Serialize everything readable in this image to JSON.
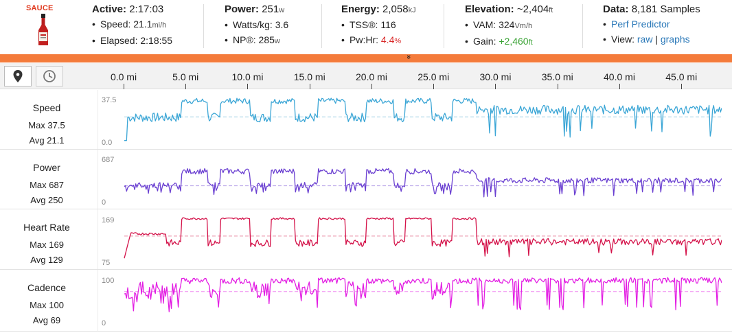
{
  "logo": {
    "text": "SAUCE",
    "icon": "hot-sauce-bottle-icon"
  },
  "stats": {
    "active": {
      "title": "Active:",
      "value": "2:17:03",
      "rows": [
        {
          "label": "Speed:",
          "value": "21.1",
          "unit": "mi/h"
        },
        {
          "label": "Elapsed:",
          "value": "2:18:55",
          "unit": ""
        }
      ]
    },
    "power": {
      "title": "Power:",
      "value": "251",
      "unit": "w",
      "rows": [
        {
          "label": "Watts/kg:",
          "value": "3.6",
          "unit": ""
        },
        {
          "label": "NP®:",
          "value": "285",
          "unit": "w"
        }
      ]
    },
    "energy": {
      "title": "Energy:",
      "value": "2,058",
      "unit": "kJ",
      "rows": [
        {
          "label": "TSS®:",
          "value": "116",
          "unit": ""
        },
        {
          "label": "Pw:Hr:",
          "value": "4.4",
          "unit": "%"
        }
      ]
    },
    "elevation": {
      "title": "Elevation:",
      "value": "~2,404",
      "unit": "ft",
      "rows": [
        {
          "label": "VAM:",
          "value": "324",
          "unit": "Vm/h"
        },
        {
          "label": "Gain:",
          "value": "+2,460",
          "unit": "ft"
        }
      ]
    },
    "data": {
      "title": "Data:",
      "value": "8,181 Samples",
      "link_perf": "Perf Predictor",
      "view_label": "View:",
      "view_raw": "raw",
      "view_sep": "|",
      "view_graphs": "graphs"
    }
  },
  "toggle": {
    "chevron": "»"
  },
  "controls": {
    "map_icon": "map-pin-icon",
    "time_icon": "clock-icon"
  },
  "x_axis": {
    "ticks": [
      "0.0 mi",
      "5.0 mi",
      "10.0 mi",
      "15.0 mi",
      "20.0 mi",
      "25.0 mi",
      "30.0 mi",
      "35.0 mi",
      "40.0 mi",
      "45.0 mi"
    ],
    "tick_values": [
      0,
      5,
      10,
      15,
      20,
      25,
      30,
      35,
      40,
      45
    ],
    "range": [
      0,
      48.2
    ]
  },
  "charts": [
    {
      "name": "Speed",
      "max_label": "Max 37.5",
      "avg_label": "Avg 21.1",
      "ymax_label": "37.5",
      "ymin_label": "0.0",
      "ylim": [
        0,
        37.5
      ],
      "avg": 21.1,
      "color": "#3ba6d6",
      "avg_color": "#9fd0e6"
    },
    {
      "name": "Power",
      "max_label": "Max 687",
      "avg_label": "Avg 250",
      "ymax_label": "687",
      "ymin_label": "0",
      "ylim": [
        0,
        687
      ],
      "avg": 250,
      "color": "#6a3fd1",
      "avg_color": "#b5a1e8"
    },
    {
      "name": "Heart Rate",
      "max_label": "Max 169",
      "avg_label": "Avg 129",
      "ymax_label": "169",
      "ymin_label": "75",
      "ylim": [
        75,
        169
      ],
      "avg": 129,
      "color": "#d4134a",
      "avg_color": "#e98aa4"
    },
    {
      "name": "Cadence",
      "max_label": "Max 100",
      "avg_label": "Avg 69",
      "ymax_label": "100",
      "ymin_label": "0",
      "ylim": [
        0,
        100
      ],
      "avg": 69,
      "color": "#e31ee3",
      "avg_color": "#f08cf0"
    }
  ],
  "colors": {
    "accent": "#f47b3b",
    "link": "#2a78b8",
    "red": "#d92b2b",
    "green": "#3aa335"
  }
}
